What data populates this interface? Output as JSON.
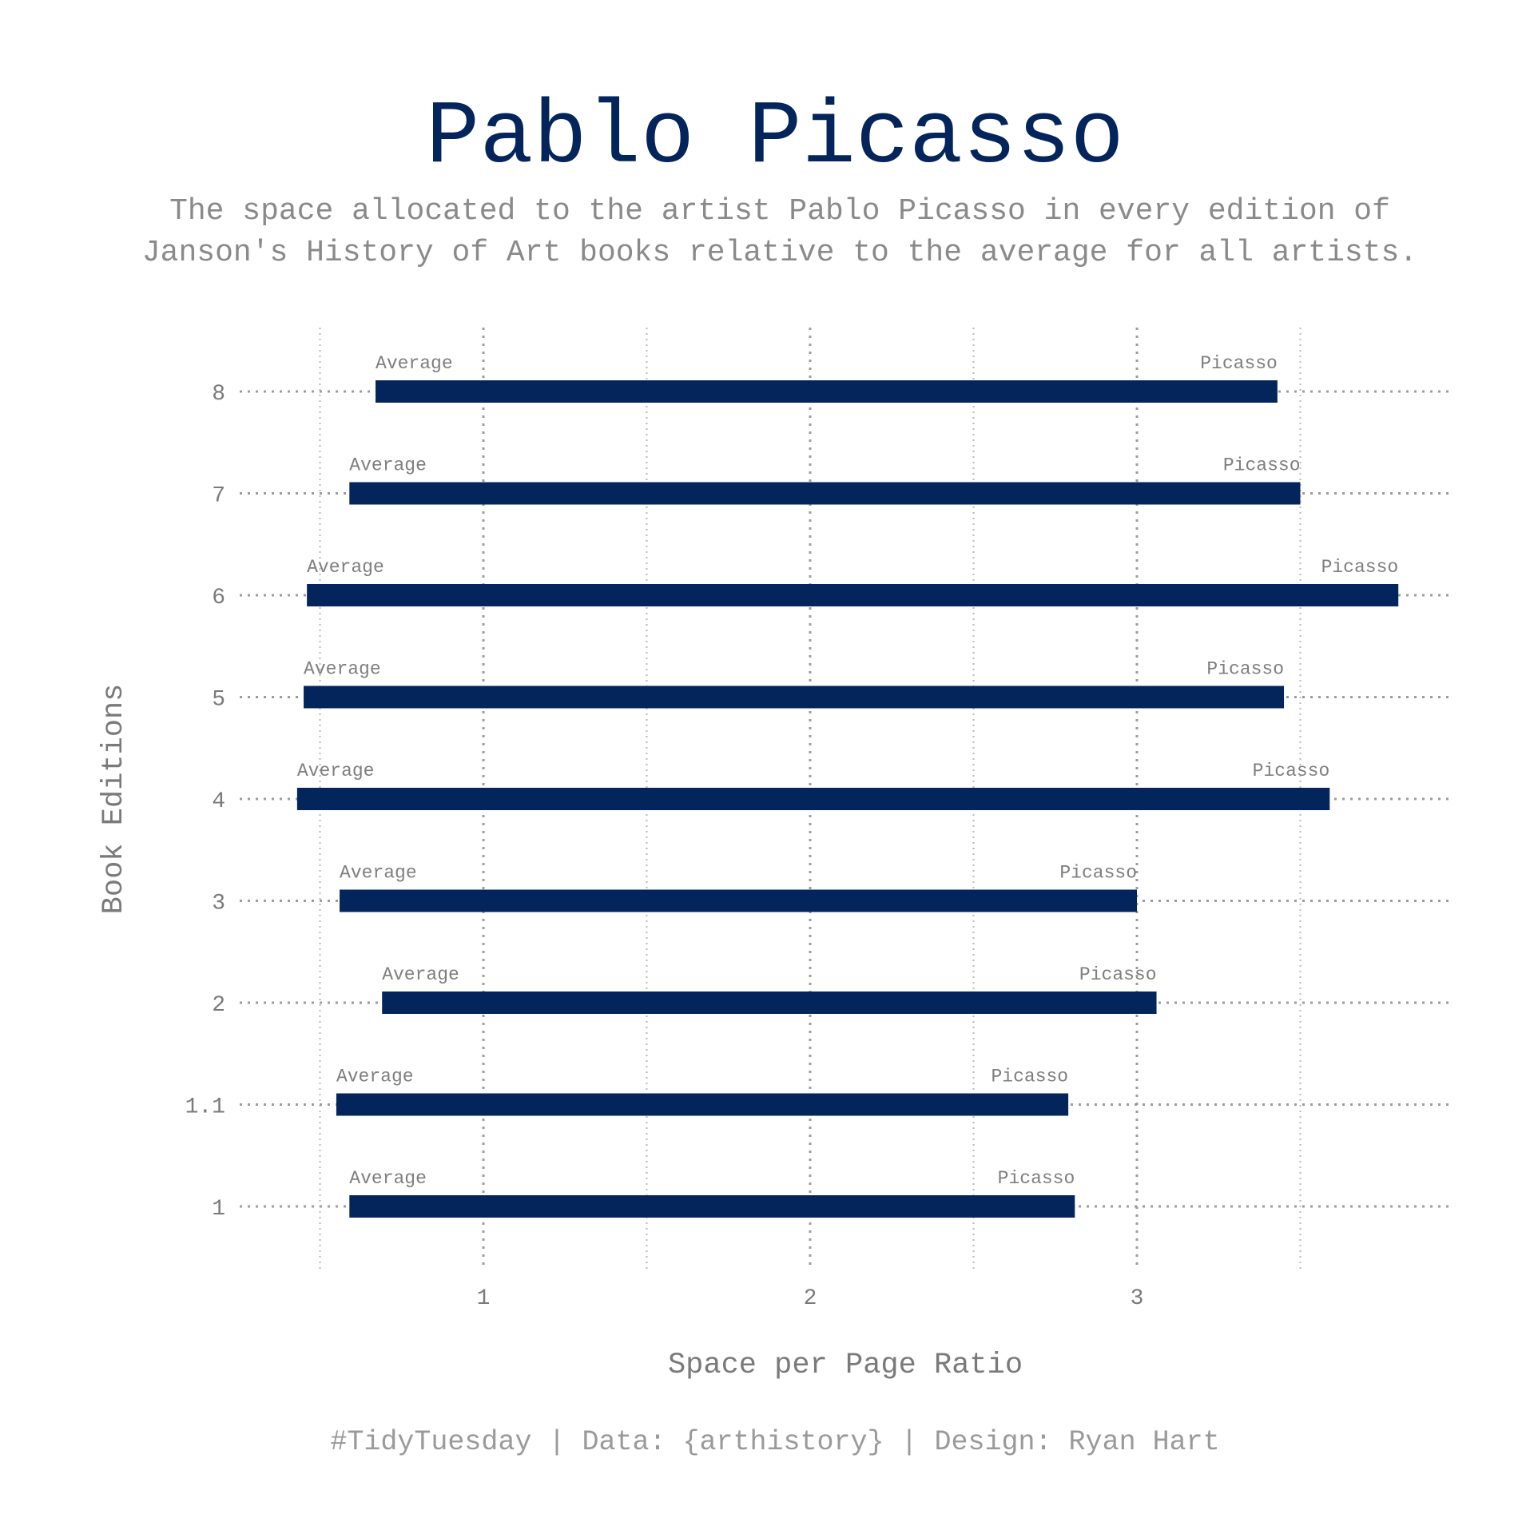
{
  "chart_data": {
    "type": "bar",
    "title": "Pablo Picasso",
    "subtitle_lines": [
      "The space allocated to the artist Pablo Picasso in every edition of",
      "Janson's History of Art books relative to the average for all artists."
    ],
    "xlabel": "Space per Page Ratio",
    "ylabel": "Book Editions",
    "caption": "#TidyTuesday | Data: {arthistory} | Design: Ryan Hart",
    "xlim": [
      0.5,
      3.9
    ],
    "x_ticks": [
      1,
      2,
      3
    ],
    "x_tick_labels": [
      "1",
      "2",
      "3"
    ],
    "start_label": "Average",
    "end_label": "Picasso",
    "categories": [
      "1",
      "1.1",
      "2",
      "3",
      "4",
      "5",
      "6",
      "7",
      "8"
    ],
    "series": [
      {
        "name": "Average",
        "values": [
          0.59,
          0.55,
          0.69,
          0.56,
          0.43,
          0.45,
          0.46,
          0.59,
          0.67
        ]
      },
      {
        "name": "Picasso",
        "values": [
          2.81,
          2.79,
          3.06,
          3.0,
          3.59,
          3.45,
          3.8,
          3.5,
          3.43
        ]
      }
    ],
    "grid": true,
    "bar_color": "#04255b"
  }
}
